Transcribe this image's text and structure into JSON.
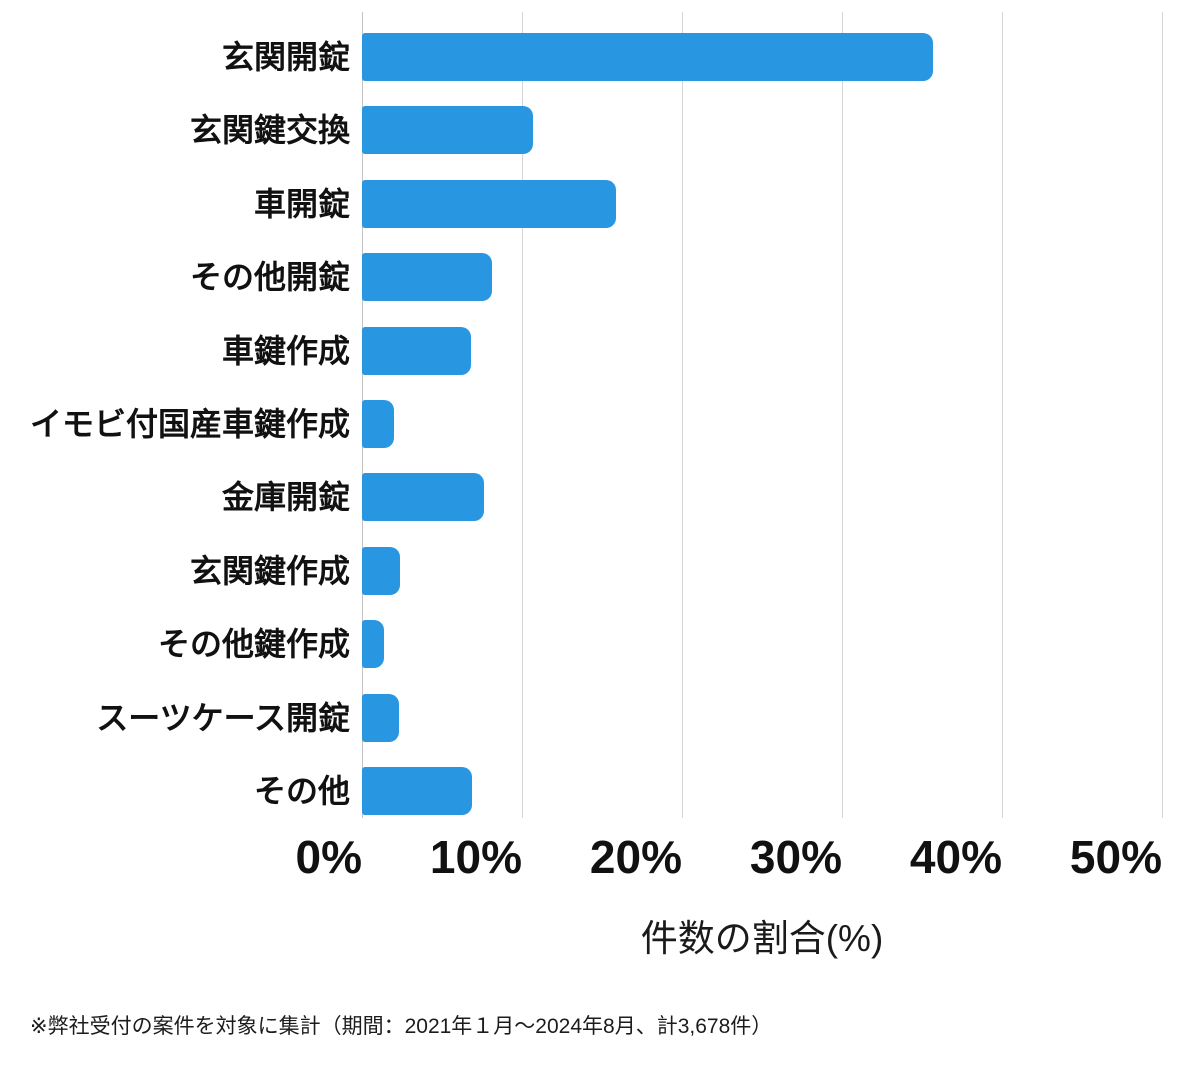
{
  "chart_data": {
    "type": "bar",
    "orientation": "horizontal",
    "categories": [
      "玄関開錠",
      "玄関鍵交換",
      "車開錠",
      "その他開錠",
      "車鍵作成",
      "イモビ付国産車鍵作成",
      "金庫開錠",
      "玄関鍵作成",
      "その他鍵作成",
      "スーツケース開錠",
      "その他"
    ],
    "values": [
      35.7,
      10.7,
      15.9,
      8.1,
      6.8,
      2.0,
      7.6,
      2.4,
      1.4,
      2.3,
      6.9
    ],
    "title": "",
    "xlabel": "件数の割合(%)",
    "ylabel": "",
    "xlim": [
      0,
      50
    ],
    "xticks": [
      0,
      10,
      20,
      30,
      40,
      50
    ],
    "xtick_labels": [
      "0%",
      "10%",
      "20%",
      "30%",
      "40%",
      "50%"
    ],
    "grid": true,
    "legend": false
  },
  "footnote": "※弊社受付の案件を対象に集計（期間：2021年１月～2024年8月、計3,678件）",
  "colors": {
    "bar": "#2996E2",
    "gridline": "#d6d6d6",
    "axis_line": "#c2c2c2",
    "label_text": "#111111",
    "footnote_text": "#1c1c1c"
  }
}
